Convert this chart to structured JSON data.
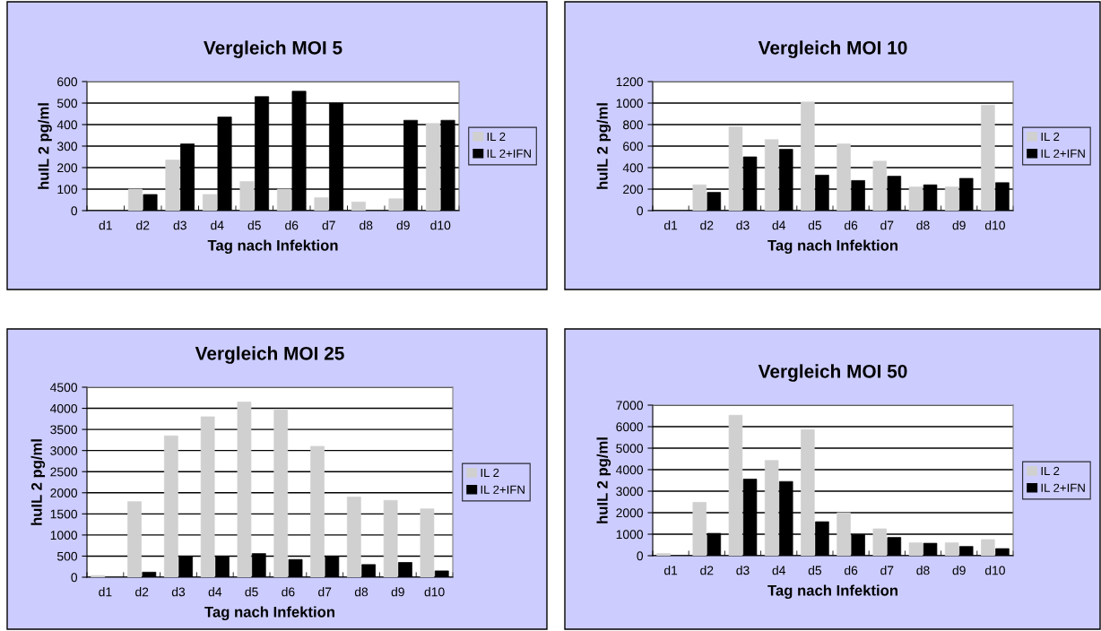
{
  "chart_data": [
    {
      "type": "bar",
      "title": "Vergleich MOI 5",
      "xlabel": "Tag nach Infektion",
      "ylabel": "huIL 2 pg/ml",
      "categories": [
        "d1",
        "d2",
        "d3",
        "d4",
        "d5",
        "d6",
        "d7",
        "d8",
        "d9",
        "d10"
      ],
      "ylim": [
        0,
        600
      ],
      "yticks": [
        0,
        100,
        200,
        300,
        400,
        500,
        600
      ],
      "grid": "y",
      "legend": "right",
      "series": [
        {
          "name": "IL 2",
          "color": "#d0d0d0",
          "values": [
            null,
            100,
            235,
            75,
            135,
            100,
            60,
            40,
            55,
            405
          ]
        },
        {
          "name": "IL 2+IFN",
          "color": "#000000",
          "values": [
            null,
            75,
            310,
            435,
            530,
            555,
            500,
            null,
            420,
            420
          ]
        }
      ]
    },
    {
      "type": "bar",
      "title": "Vergleich MOI 10",
      "xlabel": "Tag nach Infektion",
      "ylabel": "huIL 2 pg/ml",
      "categories": [
        "d1",
        "d2",
        "d3",
        "d4",
        "d5",
        "d6",
        "d7",
        "d8",
        "d9",
        "d10"
      ],
      "ylim": [
        0,
        1200
      ],
      "yticks": [
        0,
        200,
        400,
        600,
        800,
        1000,
        1200
      ],
      "grid": "y",
      "legend": "right",
      "series": [
        {
          "name": "IL 2",
          "color": "#d0d0d0",
          "values": [
            null,
            240,
            780,
            660,
            1010,
            620,
            460,
            220,
            220,
            980
          ]
        },
        {
          "name": "IL 2+IFN",
          "color": "#000000",
          "values": [
            null,
            170,
            500,
            570,
            330,
            280,
            320,
            240,
            300,
            260
          ]
        }
      ]
    },
    {
      "type": "bar",
      "title": "Vergleich MOI 25",
      "xlabel": "Tag nach Infektion",
      "ylabel": "huIL 2 pg/ml",
      "categories": [
        "d1",
        "d2",
        "d3",
        "d4",
        "d5",
        "d6",
        "d7",
        "d8",
        "d9",
        "d10"
      ],
      "ylim": [
        0,
        4500
      ],
      "yticks": [
        0,
        500,
        1000,
        1500,
        2000,
        2500,
        3000,
        3500,
        4000,
        4500
      ],
      "grid": "y",
      "legend": "right",
      "series": [
        {
          "name": "IL 2",
          "color": "#d0d0d0",
          "values": [
            40,
            1790,
            3350,
            3800,
            4150,
            3980,
            3100,
            1900,
            1820,
            1620
          ]
        },
        {
          "name": "IL 2+IFN",
          "color": "#000000",
          "values": [
            null,
            120,
            490,
            490,
            560,
            420,
            490,
            300,
            350,
            150
          ]
        }
      ]
    },
    {
      "type": "bar",
      "title": "Vergleich MOI 50",
      "xlabel": "Tag nach Infektion",
      "ylabel": "huIL 2 pg/ml",
      "categories": [
        "d1",
        "d2",
        "d3",
        "d4",
        "d5",
        "d6",
        "d7",
        "d8",
        "d9",
        "d10"
      ],
      "ylim": [
        0,
        7000
      ],
      "yticks": [
        0,
        1000,
        2000,
        3000,
        4000,
        5000,
        6000,
        7000
      ],
      "grid": "y",
      "legend": "right",
      "series": [
        {
          "name": "IL 2",
          "color": "#d0d0d0",
          "values": [
            100,
            2480,
            6530,
            4430,
            5860,
            2000,
            1250,
            600,
            600,
            750
          ]
        },
        {
          "name": "IL 2+IFN",
          "color": "#000000",
          "values": [
            null,
            1040,
            3560,
            3450,
            1580,
            980,
            850,
            580,
            430,
            330
          ]
        }
      ]
    }
  ]
}
